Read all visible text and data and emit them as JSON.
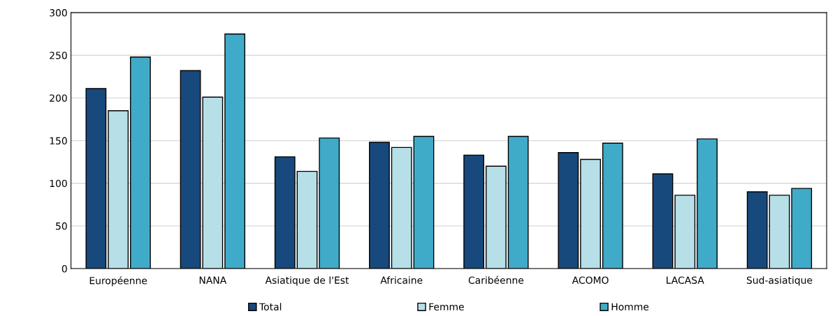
{
  "chart_data": {
    "type": "bar",
    "categories": [
      "Européenne",
      "NANA",
      "Asiatique de l'Est",
      "Africaine",
      "Caribéenne",
      "ACOMO",
      "LACASA",
      "Sud-asiatique"
    ],
    "series": [
      {
        "name": "Total",
        "color": "#17497d",
        "values": [
          211,
          232,
          131,
          148,
          133,
          136,
          111,
          90
        ]
      },
      {
        "name": "Femme",
        "color": "#b7dfe8",
        "values": [
          185,
          201,
          114,
          142,
          120,
          128,
          86,
          86
        ]
      },
      {
        "name": "Homme",
        "color": "#40abc8",
        "values": [
          248,
          275,
          153,
          155,
          155,
          147,
          152,
          94
        ]
      }
    ],
    "ylim": [
      0,
      300
    ],
    "yticks": [
      0,
      50,
      100,
      150,
      200,
      250,
      300
    ],
    "grid": "y",
    "legend": "bottom"
  }
}
